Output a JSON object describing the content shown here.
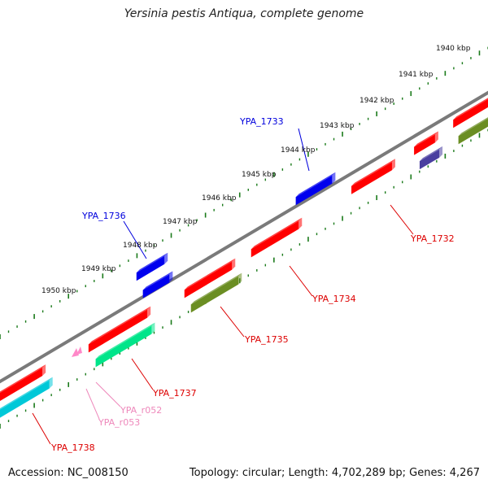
{
  "title": "Yersinia pestis Antiqua, complete genome",
  "footer": {
    "accession": "Accession: NC_008150",
    "summary": "Topology: circular; Length: 4,702,289 bp; Genes: 4,267"
  },
  "scale_ticks": [
    "1940 kbp",
    "1941 kbp",
    "1942 kbp",
    "1943 kbp",
    "1944 kbp",
    "1945 kbp",
    "1946 kbp",
    "1947 kbp",
    "1948 kbp",
    "1949 kbp",
    "1950 kbp"
  ],
  "genes": [
    {
      "label": "YPA_1732",
      "color": "#dd0000"
    },
    {
      "label": "YPA_1733",
      "color": "#0000dd"
    },
    {
      "label": "YPA_1734",
      "color": "#dd0000"
    },
    {
      "label": "YPA_1735",
      "color": "#dd0000"
    },
    {
      "label": "YPA_1736",
      "color": "#0000dd"
    },
    {
      "label": "YPA_1737",
      "color": "#dd0000"
    },
    {
      "label": "YPA_1738",
      "color": "#dd0000"
    },
    {
      "label": "YPA_r052",
      "color": "#ee88bb"
    },
    {
      "label": "YPA_r053",
      "color": "#ee88bb"
    }
  ],
  "colors": {
    "cds_red": "#ff0000",
    "cds_blue": "#0000ee",
    "olive": "#6b8e23",
    "green": "#00e58a",
    "cyan": "#00c8d8",
    "slate": "#4a3fa0",
    "rna_pink": "#ff88c8",
    "backbone": "#888888",
    "tick_green": "#1a7a1a"
  }
}
